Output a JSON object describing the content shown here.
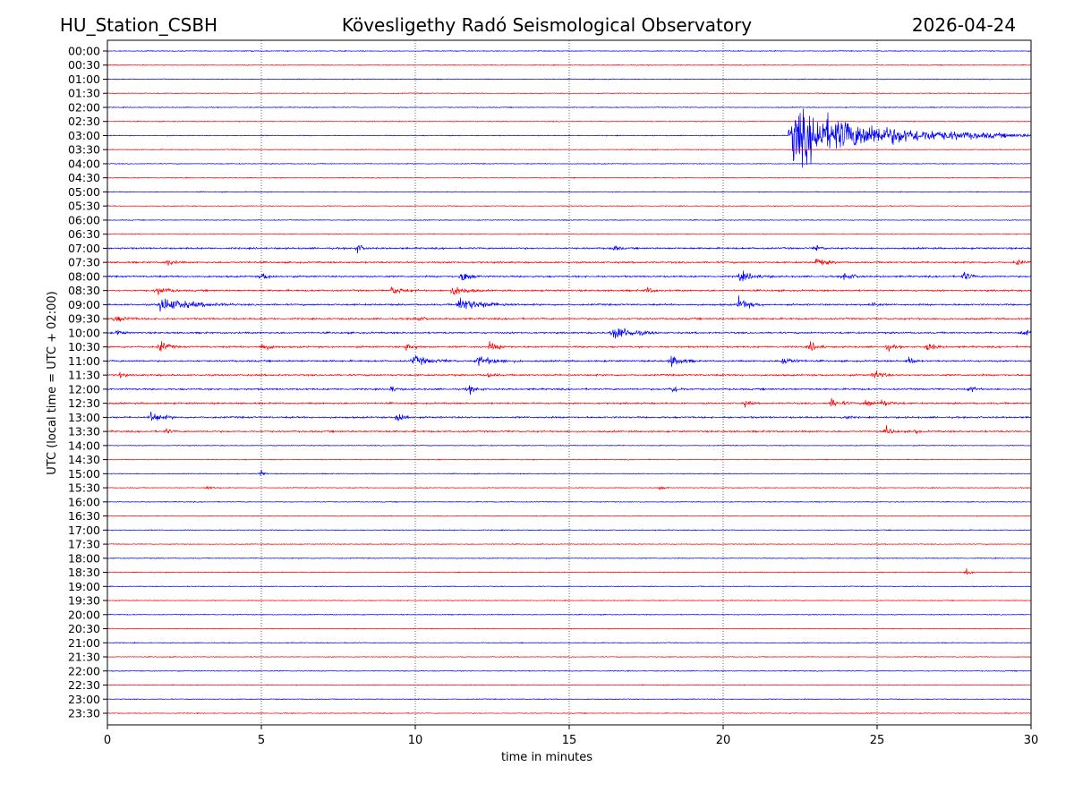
{
  "header": {
    "station": "HU_Station_CSBH",
    "observatory": "Kövesligethy Radó Seismological Observatory",
    "date": "2026-04-24"
  },
  "chart_data": {
    "type": "line",
    "title": "Kövesligethy Radó Seismological Observatory",
    "xlabel": "time in minutes",
    "ylabel": "UTC (local time = UTC + 02:00)",
    "xlim": [
      0,
      30
    ],
    "xticks": [
      "0",
      "5",
      "10",
      "15",
      "20",
      "25",
      "30"
    ],
    "grid": "vertical dotted at every 5 minutes",
    "colors": [
      "#0000ff",
      "#ff0000"
    ],
    "rows": [
      "00:00",
      "00:30",
      "01:00",
      "01:30",
      "02:00",
      "02:30",
      "03:00",
      "03:30",
      "04:00",
      "04:30",
      "05:00",
      "05:30",
      "06:00",
      "06:30",
      "07:00",
      "07:30",
      "08:00",
      "08:30",
      "09:00",
      "09:30",
      "10:00",
      "10:30",
      "11:00",
      "11:30",
      "12:00",
      "12:30",
      "13:00",
      "13:30",
      "14:00",
      "14:30",
      "15:00",
      "15:30",
      "16:00",
      "16:30",
      "17:00",
      "17:30",
      "18:00",
      "18:30",
      "19:00",
      "19:30",
      "20:00",
      "20:30",
      "21:00",
      "21:30",
      "22:00",
      "22:30",
      "23:00",
      "23:30"
    ],
    "events": [
      {
        "row": "03:00",
        "minute": 22.2,
        "amplitude": 40,
        "duration": 8.5
      },
      {
        "row": "07:00",
        "minute": 8.1,
        "amplitude": 8,
        "duration": 0.4
      },
      {
        "row": "07:00",
        "minute": 16.4,
        "amplitude": 6,
        "duration": 0.4
      },
      {
        "row": "07:00",
        "minute": 23.0,
        "amplitude": 6,
        "duration": 0.4
      },
      {
        "row": "07:30",
        "minute": 1.9,
        "amplitude": 5,
        "duration": 0.6
      },
      {
        "row": "07:30",
        "minute": 23.0,
        "amplitude": 6,
        "duration": 0.8
      },
      {
        "row": "07:30",
        "minute": 29.5,
        "amplitude": 5,
        "duration": 0.5
      },
      {
        "row": "08:00",
        "minute": 5.0,
        "amplitude": 6,
        "duration": 0.6
      },
      {
        "row": "08:00",
        "minute": 11.5,
        "amplitude": 10,
        "duration": 0.7
      },
      {
        "row": "08:00",
        "minute": 20.5,
        "amplitude": 7,
        "duration": 1.2
      },
      {
        "row": "08:00",
        "minute": 23.9,
        "amplitude": 7,
        "duration": 0.7
      },
      {
        "row": "08:00",
        "minute": 27.8,
        "amplitude": 8,
        "duration": 0.5
      },
      {
        "row": "08:30",
        "minute": 1.6,
        "amplitude": 6,
        "duration": 0.8
      },
      {
        "row": "08:30",
        "minute": 9.2,
        "amplitude": 6,
        "duration": 1.0
      },
      {
        "row": "08:30",
        "minute": 11.2,
        "amplitude": 8,
        "duration": 1.0
      },
      {
        "row": "08:30",
        "minute": 17.5,
        "amplitude": 5,
        "duration": 0.5
      },
      {
        "row": "09:00",
        "minute": 1.7,
        "amplitude": 10,
        "duration": 2.5
      },
      {
        "row": "09:00",
        "minute": 11.4,
        "amplitude": 10,
        "duration": 2.0
      },
      {
        "row": "09:00",
        "minute": 20.5,
        "amplitude": 10,
        "duration": 0.8
      },
      {
        "row": "09:00",
        "minute": 24.8,
        "amplitude": 6,
        "duration": 0.4
      },
      {
        "row": "09:30",
        "minute": 0.2,
        "amplitude": 5,
        "duration": 1.0
      },
      {
        "row": "09:30",
        "minute": 10.0,
        "amplitude": 4,
        "duration": 0.6
      },
      {
        "row": "10:00",
        "minute": 0.3,
        "amplitude": 5,
        "duration": 0.4
      },
      {
        "row": "10:00",
        "minute": 16.4,
        "amplitude": 12,
        "duration": 1.5
      },
      {
        "row": "10:00",
        "minute": 29.7,
        "amplitude": 7,
        "duration": 0.4
      },
      {
        "row": "10:30",
        "minute": 1.7,
        "amplitude": 9,
        "duration": 0.6
      },
      {
        "row": "10:30",
        "minute": 5.0,
        "amplitude": 6,
        "duration": 0.6
      },
      {
        "row": "10:30",
        "minute": 9.7,
        "amplitude": 6,
        "duration": 0.6
      },
      {
        "row": "10:30",
        "minute": 12.4,
        "amplitude": 6,
        "duration": 0.8
      },
      {
        "row": "10:30",
        "minute": 22.8,
        "amplitude": 8,
        "duration": 0.6
      },
      {
        "row": "10:30",
        "minute": 25.3,
        "amplitude": 6,
        "duration": 0.5
      },
      {
        "row": "10:30",
        "minute": 26.6,
        "amplitude": 7,
        "duration": 0.6
      },
      {
        "row": "11:00",
        "minute": 9.9,
        "amplitude": 7,
        "duration": 1.5
      },
      {
        "row": "11:00",
        "minute": 12.0,
        "amplitude": 7,
        "duration": 1.5
      },
      {
        "row": "11:00",
        "minute": 18.3,
        "amplitude": 9,
        "duration": 0.9
      },
      {
        "row": "11:00",
        "minute": 21.9,
        "amplitude": 7,
        "duration": 0.8
      },
      {
        "row": "11:00",
        "minute": 26.0,
        "amplitude": 9,
        "duration": 0.4
      },
      {
        "row": "11:30",
        "minute": 0.4,
        "amplitude": 5,
        "duration": 0.3
      },
      {
        "row": "11:30",
        "minute": 12.3,
        "amplitude": 4,
        "duration": 0.6
      },
      {
        "row": "11:30",
        "minute": 24.9,
        "amplitude": 8,
        "duration": 0.6
      },
      {
        "row": "12:00",
        "minute": 9.2,
        "amplitude": 5,
        "duration": 0.4
      },
      {
        "row": "12:00",
        "minute": 11.7,
        "amplitude": 7,
        "duration": 0.6
      },
      {
        "row": "12:00",
        "minute": 18.3,
        "amplitude": 6,
        "duration": 0.6
      },
      {
        "row": "12:00",
        "minute": 28.0,
        "amplitude": 6,
        "duration": 0.4
      },
      {
        "row": "12:30",
        "minute": 20.7,
        "amplitude": 5,
        "duration": 0.4
      },
      {
        "row": "12:30",
        "minute": 23.5,
        "amplitude": 6,
        "duration": 0.8
      },
      {
        "row": "12:30",
        "minute": 24.6,
        "amplitude": 7,
        "duration": 0.6
      },
      {
        "row": "12:30",
        "minute": 25.1,
        "amplitude": 6,
        "duration": 0.8
      },
      {
        "row": "13:00",
        "minute": 1.4,
        "amplitude": 9,
        "duration": 0.8
      },
      {
        "row": "13:00",
        "minute": 9.4,
        "amplitude": 13,
        "duration": 0.5
      },
      {
        "row": "13:00",
        "minute": 23.9,
        "amplitude": 5,
        "duration": 0.4
      },
      {
        "row": "13:30",
        "minute": 1.9,
        "amplitude": 4,
        "duration": 0.4
      },
      {
        "row": "13:30",
        "minute": 25.3,
        "amplitude": 6,
        "duration": 0.5
      },
      {
        "row": "13:30",
        "minute": 26.2,
        "amplitude": 5,
        "duration": 0.3
      },
      {
        "row": "15:00",
        "minute": 5.0,
        "amplitude": 8,
        "duration": 0.2
      },
      {
        "row": "15:30",
        "minute": 3.2,
        "amplitude": 4,
        "duration": 0.5
      },
      {
        "row": "15:30",
        "minute": 17.9,
        "amplitude": 4,
        "duration": 0.4
      },
      {
        "row": "18:30",
        "minute": 27.9,
        "amplitude": 6,
        "duration": 0.4
      }
    ]
  }
}
